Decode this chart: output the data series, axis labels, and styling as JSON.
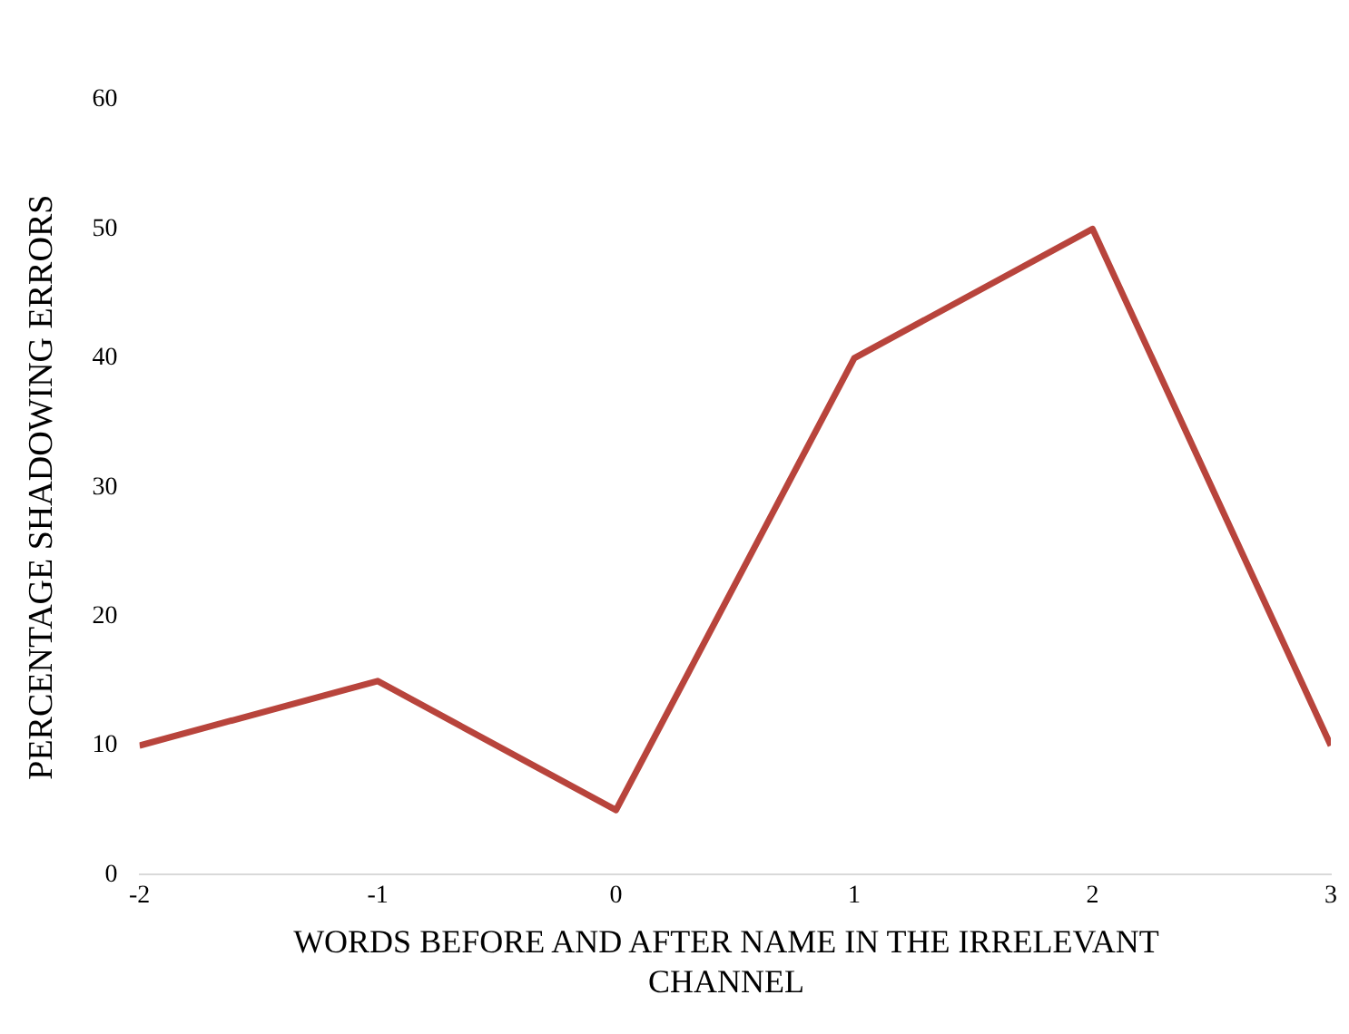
{
  "chart_data": {
    "type": "line",
    "xlabel": "WORDS BEFORE AND AFTER NAME IN THE IRRELEVANT CHANNEL",
    "ylabel": "PERCENTAGE SHADOWING ERRORS",
    "x": [
      -2,
      -1,
      0,
      1,
      2,
      3
    ],
    "series": [
      {
        "color": "#b8443c",
        "values": [
          10,
          15,
          5,
          40,
          50,
          10
        ]
      }
    ],
    "xlim": [
      -2,
      3
    ],
    "xticks": [
      -2,
      -1,
      0,
      1,
      2,
      3
    ],
    "ylim": [
      0,
      60
    ],
    "yticks": [
      0,
      10,
      20,
      30,
      40,
      50,
      60
    ],
    "grid": false,
    "legend": false,
    "marker": "none",
    "line_style": "solid"
  }
}
